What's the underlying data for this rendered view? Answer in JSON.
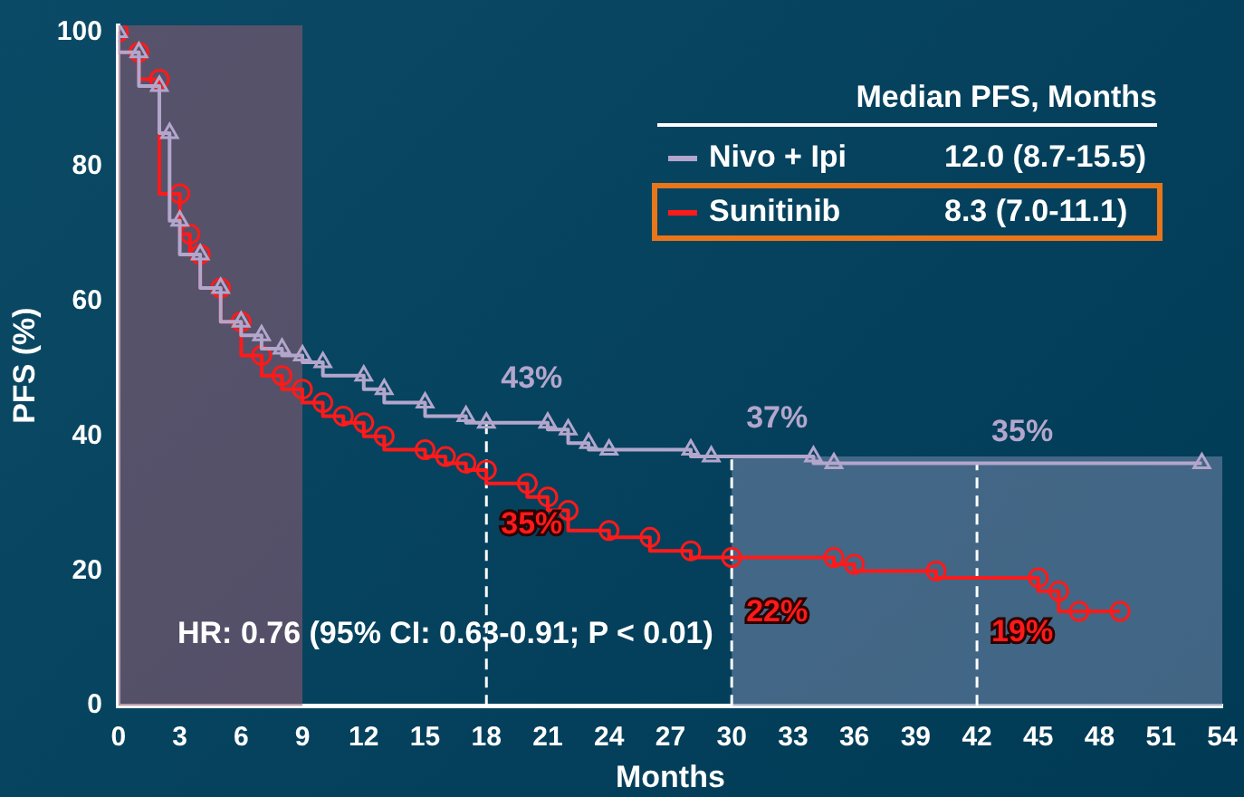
{
  "chart_data": {
    "type": "step",
    "xlabel": "Months",
    "ylabel": "PFS (%)",
    "legend_title": "Median PFS, Months",
    "legend": "top right",
    "grid": false,
    "xlim": [
      0,
      54
    ],
    "xticks": [
      0,
      3,
      6,
      9,
      12,
      15,
      18,
      21,
      24,
      27,
      30,
      33,
      36,
      39,
      42,
      45,
      48,
      51,
      54
    ],
    "ylim": [
      0,
      101
    ],
    "yticks": [
      0,
      20,
      40,
      60,
      80,
      100
    ],
    "series": [
      {
        "name": "Nivo + Ipi",
        "color": "#b3a6cc",
        "marker": "triangle",
        "x": [
          0,
          1,
          2,
          2.5,
          3,
          4,
          5,
          6,
          7,
          8,
          9,
          10,
          12,
          13,
          15,
          17,
          18,
          21,
          22,
          23,
          24,
          28,
          29,
          34,
          35,
          53
        ],
        "values": [
          100,
          97,
          92,
          85,
          72,
          67,
          62,
          57,
          55,
          53,
          52,
          51,
          49,
          47,
          45,
          43,
          42,
          42,
          41,
          39,
          38,
          38,
          37,
          37,
          36,
          36
        ]
      },
      {
        "name": "Sunitinib",
        "color": "#ff1a1a",
        "marker": "circle",
        "x": [
          0,
          1,
          2,
          3,
          3.5,
          4,
          5,
          6,
          7,
          8,
          9,
          10,
          11,
          12,
          13,
          15,
          16,
          17,
          18,
          20,
          21,
          22,
          24,
          26,
          28,
          30,
          35,
          36,
          40,
          45,
          46,
          47,
          49
        ],
        "values": [
          100,
          97,
          93,
          76,
          70,
          67,
          62,
          57,
          52,
          49,
          47,
          45,
          43,
          42,
          40,
          38,
          37,
          36,
          35,
          33,
          31,
          29,
          26,
          25,
          23,
          22,
          22,
          21,
          20,
          19,
          17,
          14,
          14
        ]
      }
    ],
    "bands": [
      {
        "axis": "x",
        "from": 0,
        "to": 9,
        "color": "#8a5a70"
      },
      {
        "axis": "x",
        "from": 30,
        "to": 54,
        "color": "#6e82a3"
      }
    ],
    "ref_lines": [
      {
        "axis": "x",
        "value": 18,
        "line_style": "dashed",
        "color": "#ffffff"
      },
      {
        "axis": "x",
        "value": 30,
        "line_style": "dashed",
        "color": "#ffffff"
      },
      {
        "axis": "x",
        "value": 42,
        "line_style": "dashed",
        "color": "#ffffff"
      }
    ],
    "annotations": [
      "12.0 (8.7-15.5)",
      "8.3 (7.0-11.1)",
      "HR: 0.76 (95% CI: 0.63-0.91; P < 0.01)",
      {
        "text": "43%",
        "x": 18,
        "y": 43
      },
      {
        "text": "35%",
        "x": 18,
        "y": 35
      },
      {
        "text": "37%",
        "x": 30,
        "y": 37
      },
      {
        "text": "22%",
        "x": 30,
        "y": 22
      },
      {
        "text": "35%",
        "x": 42,
        "y": 35
      },
      {
        "text": "19%",
        "x": 42,
        "y": 19
      }
    ]
  }
}
